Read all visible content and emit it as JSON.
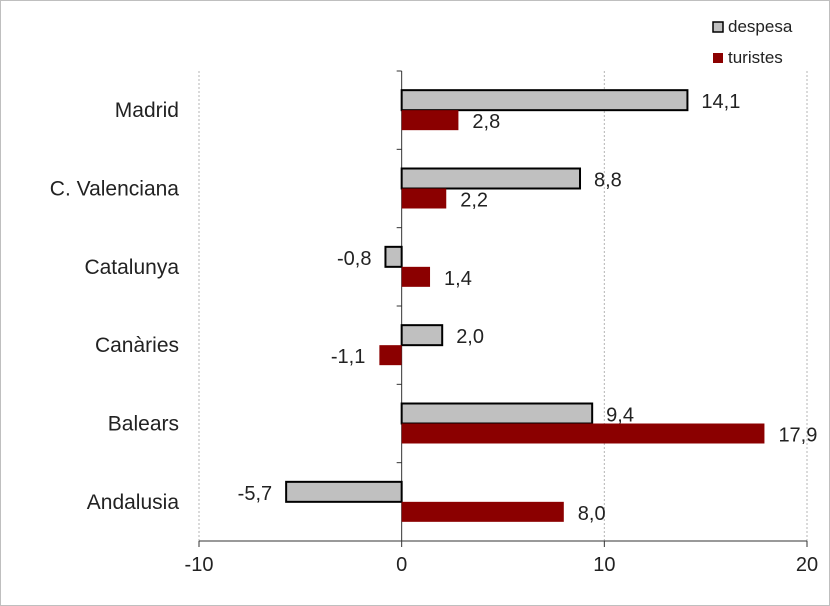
{
  "chart_data": {
    "type": "bar",
    "orientation": "horizontal",
    "categories": [
      "Madrid",
      "C. Valenciana",
      "Catalunya",
      "Canàries",
      "Balears",
      "Andalusia"
    ],
    "series": [
      {
        "name": "despesa",
        "values": [
          14.1,
          8.8,
          -0.8,
          2.0,
          9.4,
          -5.7
        ],
        "labels": [
          "14,1",
          "8,8",
          "-0,8",
          "2,0",
          "9,4",
          "-5,7"
        ],
        "color": "#c0c0c0",
        "stroke": "#000000"
      },
      {
        "name": "turistes",
        "values": [
          2.8,
          2.2,
          1.4,
          -1.1,
          17.9,
          8.0
        ],
        "labels": [
          "2,8",
          "2,2",
          "1,4",
          "-1,1",
          "17,9",
          "8,0"
        ],
        "color": "#8b0000",
        "stroke": "none"
      }
    ],
    "xlim": [
      -10,
      20
    ],
    "xticks": [
      -10,
      0,
      10,
      20
    ],
    "xtick_labels": [
      "-10",
      "0",
      "10",
      "20"
    ],
    "grid": "vertical-dashed",
    "legend_position": "top-right",
    "title": "",
    "xlabel": "",
    "ylabel": ""
  }
}
